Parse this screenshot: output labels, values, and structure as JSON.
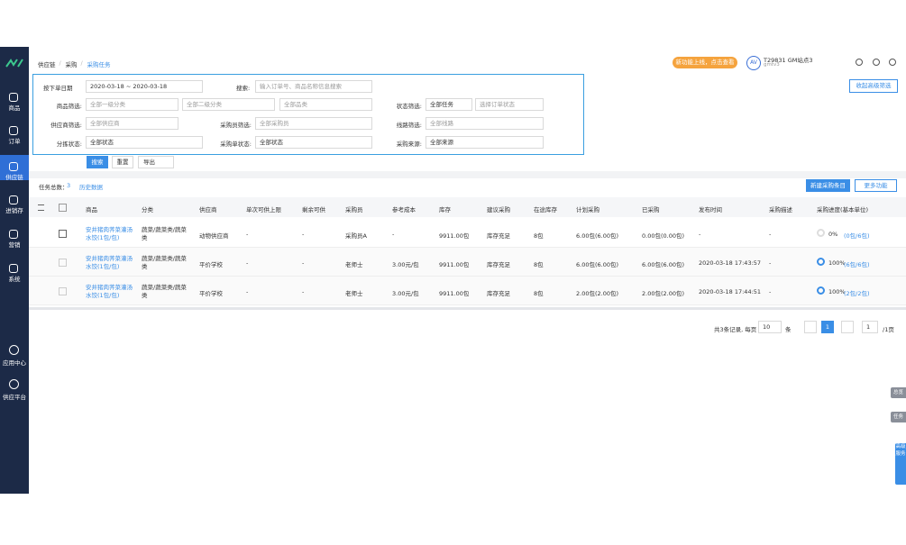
{
  "sidebar": {
    "items": [
      "商品",
      "订单",
      "供应链",
      "进销存",
      "营销",
      "系统"
    ],
    "bottom": [
      "应用中心",
      "供应平台"
    ]
  },
  "breadcrumb": [
    "供应链",
    "采购",
    "采购任务"
  ],
  "header": {
    "promo": "新功能上线，点击查看",
    "avatar": "AV",
    "account": "T29831 GM站点3",
    "user": "gmtv3"
  },
  "filters": {
    "date_mode": "按下单日期",
    "date_range": "2020-03-18 ~ 2020-03-18",
    "search_label": "搜索:",
    "search_placeholder": "输入订单号、商品名称信息搜索",
    "collapse": "收起高级筛选",
    "goods_label": "商品筛选:",
    "category1": "全部一级分类",
    "category2": "全部二级分类",
    "category3": "全部品类",
    "status_label": "状态筛选:",
    "status_value": "全部任务",
    "status_input": "选择订单状态",
    "supplier_label": "供应商筛选:",
    "supplier_value": "全部供应商",
    "buyer_label": "采购员筛选:",
    "buyer_value": "全部采购员",
    "route_label": "线路筛选:",
    "route_value": "全部线路",
    "sort_label": "分拣状态:",
    "sort_value": "全部状态",
    "order_label": "采购单状态:",
    "order_value": "全部状态",
    "source_label": "采购来源:",
    "source_value": "全部来源"
  },
  "buttons": {
    "search": "搜索",
    "reset": "重置",
    "export": "导出"
  },
  "summary": {
    "label": "任务总数：",
    "count": "3",
    "history": "历史数据",
    "new": "新建采购条目",
    "more": "更多功能"
  },
  "table": {
    "columns": [
      "商品",
      "分类",
      "供应商",
      "单次可供上限",
      "剩余可供",
      "采购员",
      "参考成本",
      "库存",
      "建议采购",
      "在途库存",
      "计划采购",
      "已采购",
      "发布时间",
      "采购描述",
      "采购进度(基本单位)"
    ],
    "rows": [
      {
        "cells": [
          "安井猪肉荠菜灌汤水饺(1包/包)",
          "蔬菜/蔬菜类/蔬菜类",
          "动物供应商",
          "-",
          "-",
          "采购员A",
          "-",
          "9911.00包",
          "库存充足",
          "8包",
          "6.00包(6.00包)",
          "0.00包(0.00包)",
          "-",
          "-"
        ],
        "percent": "0%",
        "detail": "(0包/6包)"
      },
      {
        "cells": [
          "安井猪肉荠菜灌汤水饺(1包/包)",
          "蔬菜/蔬菜类/蔬菜类",
          "平价学校",
          "-",
          "-",
          "老师士",
          "3.00元/包",
          "9911.00包",
          "库存充足",
          "8包",
          "6.00包(6.00包)",
          "6.00包(6.00包)",
          "2020-03-18 17:43:57",
          "-"
        ],
        "percent": "100%",
        "detail": "(6包/6包)"
      },
      {
        "cells": [
          "安井猪肉荠菜灌汤水饺(1包/包)",
          "蔬菜/蔬菜类/蔬菜类",
          "平价学校",
          "-",
          "-",
          "老师士",
          "3.00元/包",
          "9911.00包",
          "库存充足",
          "8包",
          "2.00包(2.00包)",
          "2.00包(2.00包)",
          "2020-03-18 17:44:51",
          "-"
        ],
        "percent": "100%",
        "detail": "(2包/2包)"
      }
    ]
  },
  "pagination": {
    "total": "共3条记录, 每页",
    "size": "10",
    "unit": "条",
    "current": "1",
    "goto": "1",
    "pages": "/1页"
  },
  "side_tabs": [
    "总览",
    "任务",
    "高级服务"
  ]
}
